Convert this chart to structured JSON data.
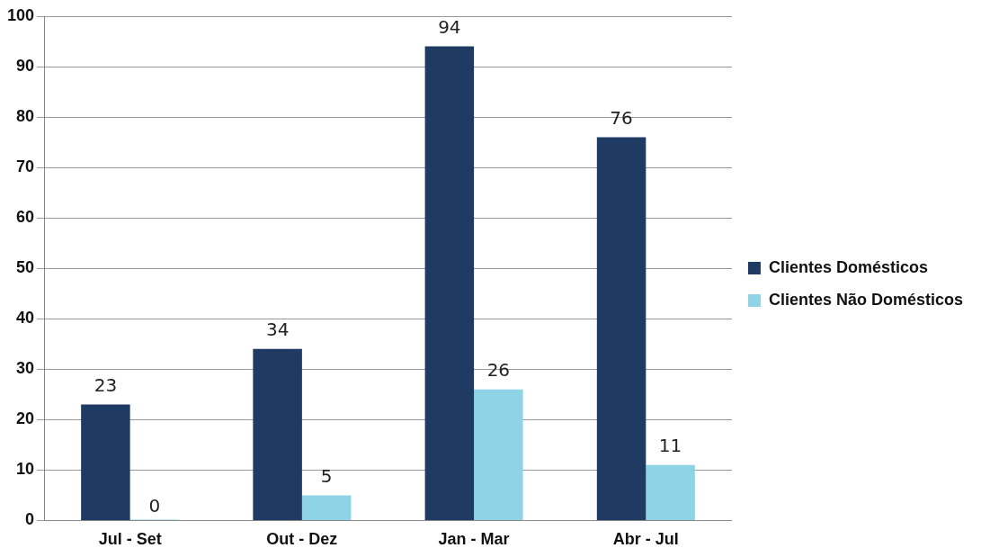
{
  "chart_data": {
    "type": "bar",
    "categories": [
      "Jul - Set",
      "Out - Dez",
      "Jan - Mar",
      "Abr - Jul"
    ],
    "series": [
      {
        "name": "Clientes Domésticos",
        "color": "#1f3a63",
        "values": [
          23,
          34,
          94,
          76
        ]
      },
      {
        "name": "Clientes Não Domésticos",
        "color": "#8fd3e6",
        "values": [
          0,
          5,
          26,
          11
        ]
      }
    ],
    "ylim": [
      0,
      100
    ],
    "yticks": [
      0,
      10,
      20,
      30,
      40,
      50,
      60,
      70,
      80,
      90,
      100
    ],
    "grid": "y",
    "legend": "right",
    "data_labels": true
  }
}
